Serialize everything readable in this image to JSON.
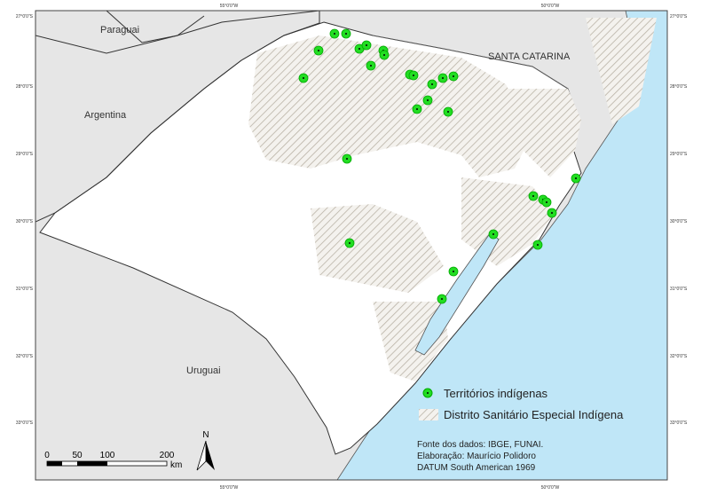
{
  "map": {
    "labels": {
      "paraguai": "Paraguai",
      "argentina": "Argentina",
      "uruguai": "Uruguai",
      "santa_catarina": "SANTA CATARINA"
    },
    "graticule": {
      "top": [
        "55°0'0\"W",
        "50°0'0\"W"
      ],
      "bottom": [
        "55°0'0\"W",
        "50°0'0\"W"
      ],
      "left": [
        "27°0'0\"S",
        "28°0'0\"S",
        "29°0'0\"S",
        "30°0'0\"S",
        "31°0'0\"S",
        "32°0'0\"S",
        "33°0'0\"S"
      ],
      "right": [
        "27°0'0\"S",
        "28°0'0\"S",
        "29°0'0\"S",
        "30°0'0\"S",
        "31°0'0\"S",
        "32°0'0\"S",
        "33°0'0\"S"
      ]
    },
    "legend": {
      "items": [
        "Territórios indígenas",
        "Distrito Sanitário Especial Indígena"
      ]
    },
    "scale": {
      "labels": [
        "0",
        "50",
        "100",
        "200"
      ],
      "unit": "km"
    },
    "north": "N",
    "credits": [
      "Fonte dos dados: IBGE, FUNAI.",
      "Elaboração: Maurício Polidoro",
      "DATUM South American 1969"
    ]
  }
}
